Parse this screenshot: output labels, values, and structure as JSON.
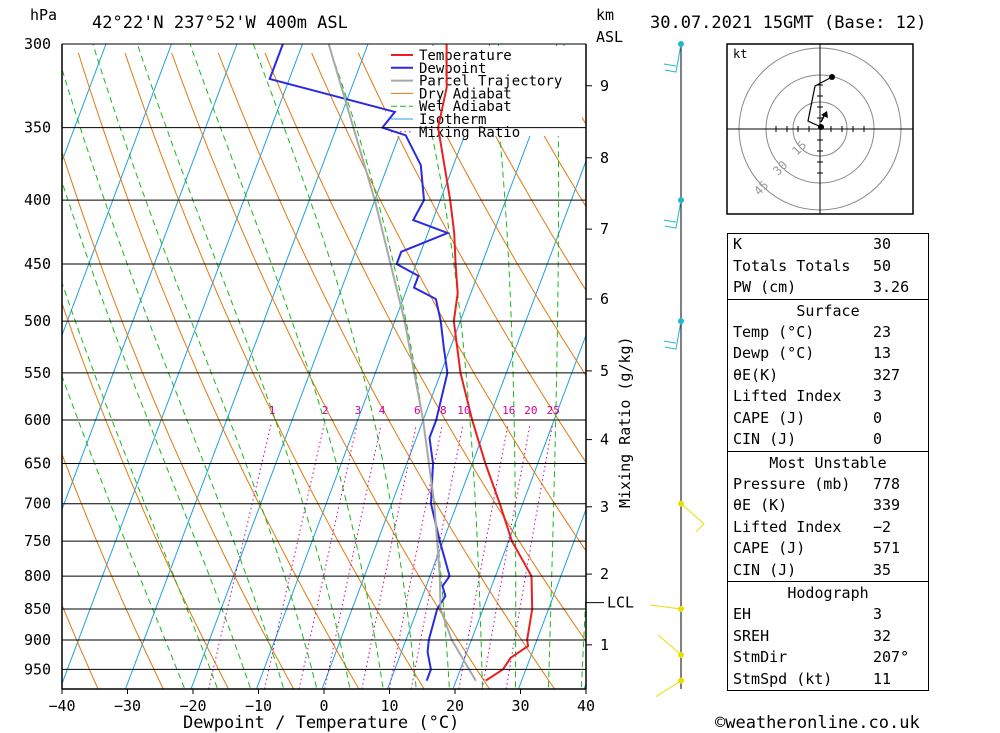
{
  "header": {
    "hpa_label": "hPa",
    "location": "42°22'N  237°52'W  400m  ASL",
    "km_label": "km",
    "asl_label": "ASL",
    "datetime": "30.07.2021  15GMT  (Base: 12)"
  },
  "footer": {
    "copyright": "©weatheronline.co.uk"
  },
  "colors": {
    "temperature": "#e8201f",
    "dewpoint": "#2a2ae0",
    "parcel": "#a8a8a8",
    "dry_adiabat": "#e07a10",
    "wet_adiabat": "#18b818",
    "isotherm": "#20a0e0",
    "mixing_ratio": "#d000a0",
    "wind_barb_upper": "#20b8d0",
    "wind_barb_lower": "#e8e000"
  },
  "hodograph": {
    "unit_label": "kt",
    "ring_labels": [
      "15",
      "30",
      "45"
    ]
  },
  "chart_data": {
    "type": "line",
    "title": "",
    "xlabel": "Dewpoint / Temperature (°C)",
    "ylabel": "hPa",
    "secondary_ylabel": "Mixing Ratio (g/kg)",
    "x_ticks": [
      -40,
      -30,
      -20,
      -10,
      0,
      10,
      20,
      30,
      40
    ],
    "x_tick_labels": [
      "−40",
      "−30",
      "−20",
      "−10",
      "0",
      "10",
      "20",
      "30",
      "40"
    ],
    "xlim": [
      -40,
      40
    ],
    "ylim": [
      1000,
      300
    ],
    "y_scale": "log",
    "pressure_levels": [
      300,
      350,
      400,
      450,
      500,
      550,
      600,
      650,
      700,
      750,
      800,
      850,
      900,
      950
    ],
    "km_levels": [
      {
        "km": "1",
        "p": 908
      },
      {
        "km": "2",
        "p": 797
      },
      {
        "km": "3",
        "p": 704
      },
      {
        "km": "4",
        "p": 622
      },
      {
        "km": "5",
        "p": 548
      },
      {
        "km": "6",
        "p": 480
      },
      {
        "km": "7",
        "p": 422
      },
      {
        "km": "8",
        "p": 370
      },
      {
        "km": "9",
        "p": 324
      }
    ],
    "lcl": {
      "label": "LCL",
      "p": 840
    },
    "mixing_ratio_labels": [
      "1",
      "2",
      "3",
      "4",
      "6",
      "8",
      "10",
      "16",
      "20",
      "25"
    ],
    "mixing_ratio_values": [
      1,
      2,
      3,
      4,
      6,
      8,
      10,
      16,
      20,
      25
    ],
    "legend": {
      "position": "top-right",
      "entries": [
        "Temperature",
        "Dewpoint",
        "Parcel Trajectory",
        "Dry Adiabat",
        "Wet Adiabat",
        "Isotherm",
        "Mixing Ratio"
      ]
    },
    "series": [
      {
        "name": "Temperature",
        "points": [
          [
            970,
            24.5
          ],
          [
            950,
            26.5
          ],
          [
            930,
            27
          ],
          [
            910,
            29
          ],
          [
            900,
            28.5
          ],
          [
            850,
            27.5
          ],
          [
            800,
            25.5
          ],
          [
            750,
            20.5
          ],
          [
            700,
            16.5
          ],
          [
            650,
            12
          ],
          [
            600,
            7.5
          ],
          [
            550,
            3
          ],
          [
            500,
            -1
          ],
          [
            475,
            -2
          ],
          [
            450,
            -4
          ],
          [
            425,
            -6
          ],
          [
            400,
            -8.5
          ],
          [
            350,
            -14.5
          ],
          [
            325,
            -15.5
          ],
          [
            300,
            -18
          ]
        ]
      },
      {
        "name": "Dewpoint",
        "points": [
          [
            970,
            15.5
          ],
          [
            950,
            15.5
          ],
          [
            930,
            14.5
          ],
          [
            920,
            14
          ],
          [
            900,
            13.5
          ],
          [
            850,
            13
          ],
          [
            830,
            13.5
          ],
          [
            815,
            12.5
          ],
          [
            800,
            13
          ],
          [
            750,
            9.5
          ],
          [
            700,
            6
          ],
          [
            650,
            4
          ],
          [
            620,
            2
          ],
          [
            600,
            2
          ],
          [
            550,
            1
          ],
          [
            525,
            -1
          ],
          [
            500,
            -3
          ],
          [
            480,
            -5
          ],
          [
            470,
            -9
          ],
          [
            460,
            -9
          ],
          [
            450,
            -13
          ],
          [
            440,
            -13
          ],
          [
            425,
            -7
          ],
          [
            415,
            -13
          ],
          [
            400,
            -12.5
          ],
          [
            375,
            -15
          ],
          [
            355,
            -19
          ],
          [
            350,
            -23
          ],
          [
            340,
            -22
          ],
          [
            320,
            -43
          ],
          [
            300,
            -43
          ]
        ]
      },
      {
        "name": "Parcel Trajectory",
        "points": [
          [
            970,
            23
          ],
          [
            900,
            17
          ],
          [
            850,
            13.5
          ],
          [
            800,
            11.5
          ],
          [
            700,
            6.5
          ],
          [
            600,
            0
          ],
          [
            500,
            -8.5
          ],
          [
            400,
            -20
          ],
          [
            300,
            -36
          ]
        ]
      }
    ]
  },
  "stats": {
    "general": [
      {
        "label": "K",
        "value": "30"
      },
      {
        "label": "Totals Totals",
        "value": "50"
      },
      {
        "label": "PW (cm)",
        "value": "3.26"
      }
    ],
    "surface_title": "Surface",
    "surface": [
      {
        "label": "Temp (°C)",
        "value": "23"
      },
      {
        "label": "Dewp (°C)",
        "value": "13"
      },
      {
        "label": "θE(K)",
        "value": "327"
      },
      {
        "label": "Lifted Index",
        "value": "3"
      },
      {
        "label": "CAPE (J)",
        "value": "0"
      },
      {
        "label": "CIN (J)",
        "value": "0"
      }
    ],
    "unstable_title": "Most Unstable",
    "unstable": [
      {
        "label": "Pressure (mb)",
        "value": "778"
      },
      {
        "label": "θE (K)",
        "value": "339"
      },
      {
        "label": "Lifted Index",
        "value": "−2"
      },
      {
        "label": "CAPE (J)",
        "value": "571"
      },
      {
        "label": "CIN (J)",
        "value": "35"
      }
    ],
    "hodograph_title": "Hodograph",
    "hodograph": [
      {
        "label": "EH",
        "value": "3"
      },
      {
        "label": "SREH",
        "value": "32"
      },
      {
        "label": "StmDir",
        "value": "207°"
      },
      {
        "label": "StmSpd (kt)",
        "value": "11"
      }
    ]
  }
}
